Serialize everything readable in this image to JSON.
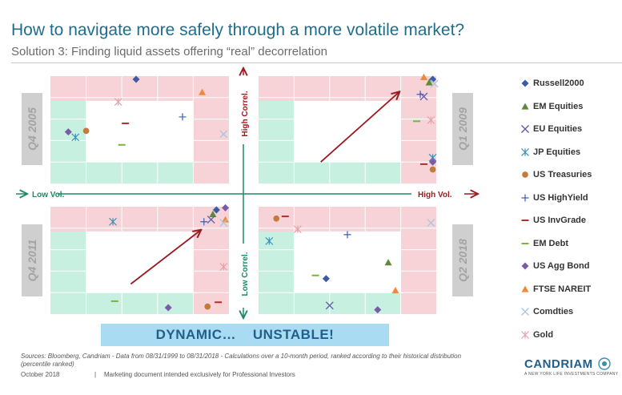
{
  "header": {
    "title": "How to navigate more safely through a more volatile market?",
    "subtitle": "Solution 3: Finding liquid assets offering “real” decorrelation"
  },
  "axes": {
    "low_vol": "Low Vol.",
    "high_vol": "High Vol.",
    "high_correl": "High Correl.",
    "low_correl": "Low Correl."
  },
  "colors": {
    "pink_zone": "#f7d3d8",
    "green_zone": "#c7f0e0",
    "axis_green": "#1d8a62",
    "axis_red": "#9b1b22",
    "arrow": "#9b1b22",
    "title_blue": "#1f6d8c",
    "banner": "#a9dcf3"
  },
  "banner": {
    "text": "DYNAMIC…    UNSTABLE!"
  },
  "footer": {
    "sources": "Sources: Bloomberg, Candriam - Data from 08/31/1999 to 08/31/2018 - Calculations over a 10-month period, ranked according to their historical distribution (percentile ranked)",
    "date": "October 2018",
    "separator": "|",
    "note": "Marketing document intended exclusively for Professional Investors"
  },
  "logo": {
    "name": "CANDRIAM",
    "tagline": "A NEW YORK LIFE INVESTMENTS COMPANY"
  },
  "legend": [
    {
      "label": "Russell2000",
      "marker": "diamond",
      "color": "#3b5ba5"
    },
    {
      "label": "EM Equities",
      "marker": "triangle",
      "color": "#5f8a3c"
    },
    {
      "label": "EU Equities",
      "marker": "x",
      "color": "#5a5aa8"
    },
    {
      "label": "JP Equities",
      "marker": "star",
      "color": "#3a8fb0"
    },
    {
      "label": "US Treasuries",
      "marker": "circle",
      "color": "#c47a3a"
    },
    {
      "label": "US HighYield",
      "marker": "plus",
      "color": "#3a5fb5"
    },
    {
      "label": "US InvGrade",
      "marker": "dash",
      "color": "#b03030"
    },
    {
      "label": "EM Debt",
      "marker": "dash",
      "color": "#7cb342"
    },
    {
      "label": "US Agg Bond",
      "marker": "diamond",
      "color": "#7b5ba8"
    },
    {
      "label": "FTSE NAREIT",
      "marker": "triangle",
      "color": "#f08a3a"
    },
    {
      "label": "Comdties",
      "marker": "x",
      "color": "#a9c6dc"
    },
    {
      "label": "Gold",
      "marker": "star",
      "color": "#e8a0a8"
    }
  ],
  "chart_data": {
    "type": "scatter",
    "x_axis": "Volatility percentile rank (Low Vol. → High Vol.)",
    "y_axis": "Correlation percentile rank (Low Correl. → High Correl.)",
    "xlim": [
      0,
      100
    ],
    "ylim": [
      0,
      100
    ],
    "panels": [
      {
        "period": "Q4 2005",
        "arrow": null,
        "points": [
          {
            "series": "Russell2000",
            "x": 48,
            "y": 97
          },
          {
            "series": "FTSE NAREIT",
            "x": 85,
            "y": 85
          },
          {
            "series": "Gold",
            "x": 38,
            "y": 76
          },
          {
            "series": "US HighYield",
            "x": 74,
            "y": 62
          },
          {
            "series": "US InvGrade",
            "x": 42,
            "y": 56
          },
          {
            "series": "Comdties",
            "x": 97,
            "y": 46
          },
          {
            "series": "US Agg Bond",
            "x": 10,
            "y": 48
          },
          {
            "series": "JP Equities",
            "x": 14,
            "y": 43
          },
          {
            "series": "US Treasuries",
            "x": 20,
            "y": 49
          },
          {
            "series": "EM Debt",
            "x": 40,
            "y": 36
          }
        ]
      },
      {
        "period": "Q1 2009",
        "arrow": {
          "from": [
            35,
            20
          ],
          "to": [
            79,
            85
          ]
        },
        "points": [
          {
            "series": "FTSE NAREIT",
            "x": 93,
            "y": 99
          },
          {
            "series": "Russell2000",
            "x": 98,
            "y": 97
          },
          {
            "series": "EM Equities",
            "x": 96,
            "y": 94
          },
          {
            "series": "Comdties",
            "x": 99,
            "y": 93
          },
          {
            "series": "US HighYield",
            "x": 91,
            "y": 83
          },
          {
            "series": "EU Equities",
            "x": 93,
            "y": 81
          },
          {
            "series": "EM Debt",
            "x": 89,
            "y": 58
          },
          {
            "series": "Gold",
            "x": 97,
            "y": 59
          },
          {
            "series": "JP Equities",
            "x": 98,
            "y": 24
          },
          {
            "series": "US Agg Bond",
            "x": 98,
            "y": 20
          },
          {
            "series": "US InvGrade",
            "x": 93,
            "y": 18
          },
          {
            "series": "US Treasuries",
            "x": 98,
            "y": 13
          }
        ]
      },
      {
        "period": "Q4 2011",
        "arrow": {
          "from": [
            45,
            28
          ],
          "to": [
            84,
            78
          ]
        },
        "points": [
          {
            "series": "Russell2000",
            "x": 93,
            "y": 97
          },
          {
            "series": "US Agg Bond",
            "x": 98,
            "y": 99
          },
          {
            "series": "EM Equities",
            "x": 91,
            "y": 93
          },
          {
            "series": "FTSE NAREIT",
            "x": 98,
            "y": 88
          },
          {
            "series": "US HighYield",
            "x": 86,
            "y": 86
          },
          {
            "series": "JP Equities",
            "x": 35,
            "y": 86
          },
          {
            "series": "EU Equities",
            "x": 90,
            "y": 88
          },
          {
            "series": "Comdties",
            "x": 97,
            "y": 85
          },
          {
            "series": "Gold",
            "x": 97,
            "y": 44
          },
          {
            "series": "EM Debt",
            "x": 36,
            "y": 12
          },
          {
            "series": "US Agg Bond",
            "x": 66,
            "y": 6
          },
          {
            "series": "US Treasuries",
            "x": 88,
            "y": 7
          },
          {
            "series": "US InvGrade",
            "x": 94,
            "y": 11
          }
        ]
      },
      {
        "period": "Q2 2018",
        "arrow": null,
        "points": [
          {
            "series": "US Treasuries",
            "x": 10,
            "y": 89
          },
          {
            "series": "US InvGrade",
            "x": 15,
            "y": 91
          },
          {
            "series": "Gold",
            "x": 22,
            "y": 79
          },
          {
            "series": "US HighYield",
            "x": 50,
            "y": 74
          },
          {
            "series": "Comdties",
            "x": 97,
            "y": 85
          },
          {
            "series": "JP Equities",
            "x": 6,
            "y": 68
          },
          {
            "series": "EM Equities",
            "x": 73,
            "y": 48
          },
          {
            "series": "EM Debt",
            "x": 32,
            "y": 36
          },
          {
            "series": "Russell2000",
            "x": 38,
            "y": 33
          },
          {
            "series": "FTSE NAREIT",
            "x": 77,
            "y": 22
          },
          {
            "series": "EU Equities",
            "x": 40,
            "y": 8
          },
          {
            "series": "US Agg Bond",
            "x": 67,
            "y": 4
          }
        ]
      }
    ]
  }
}
